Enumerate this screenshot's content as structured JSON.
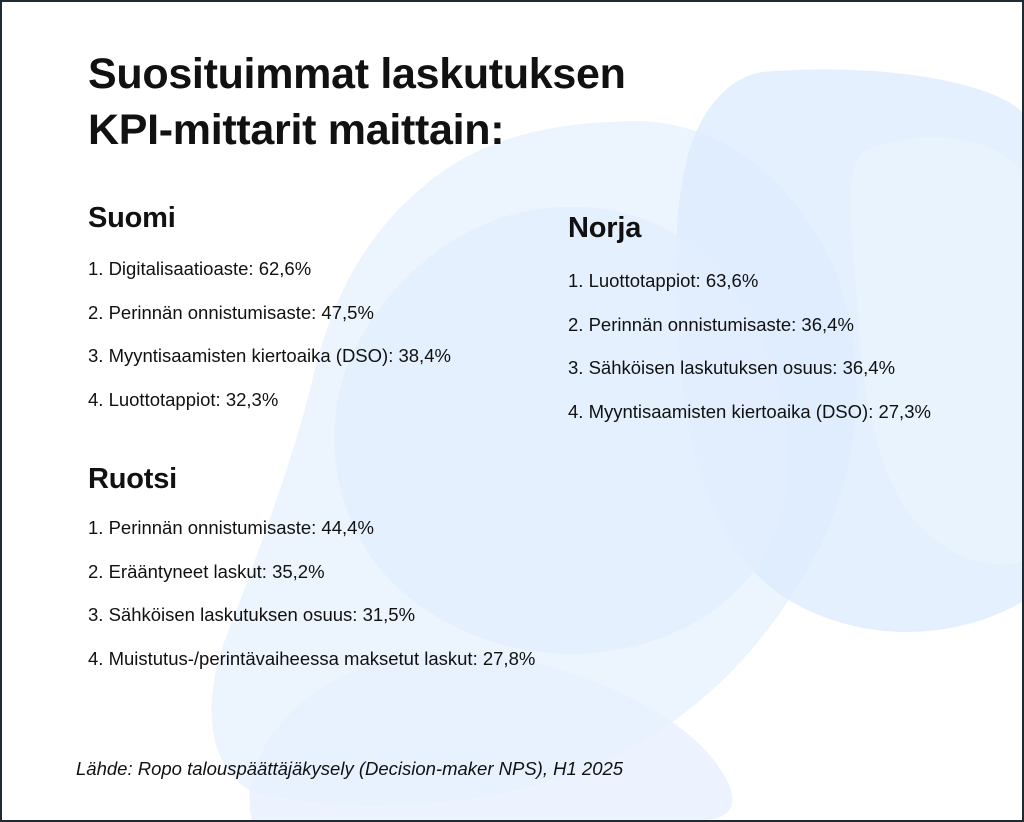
{
  "title_lines": [
    "Suosituimmat laskutuksen",
    "KPI-mittarit maittain:"
  ],
  "sections": {
    "suomi": {
      "heading": "Suomi",
      "items": [
        "1. Digitalisaatioaste: 62,6%",
        "2. Perinnän onnistumisaste: 47,5%",
        "3. Myyntisaamisten kiertoaika (DSO): 38,4%",
        "4. Luottotappiot: 32,3%"
      ]
    },
    "norja": {
      "heading": "Norja",
      "items": [
        "1. Luottotappiot: 63,6%",
        "2. Perinnän onnistumisaste: 36,4%",
        "3. Sähköisen laskutuksen osuus: 36,4%",
        "4. Myyntisaamisten kiertoaika (DSO): 27,3%"
      ]
    },
    "ruotsi": {
      "heading": "Ruotsi",
      "items": [
        "1. Perinnän onnistumisaste: 44,4%",
        "2. Erääntyneet laskut: 35,2%",
        "3. Sähköisen laskutuksen osuus: 31,5%",
        "4. Muistutus-/perintävaiheessa maksetut laskut: 27,8%"
      ]
    }
  },
  "source": "Lähde: Ropo talouspäättäjäkysely (Decision-maker NPS), H1 2025",
  "colors": {
    "background": "#ffffff",
    "text": "#111111",
    "border": "#1f2a33",
    "blob_light": "#e9f2fe",
    "blob_mid": "#dcebfd"
  }
}
